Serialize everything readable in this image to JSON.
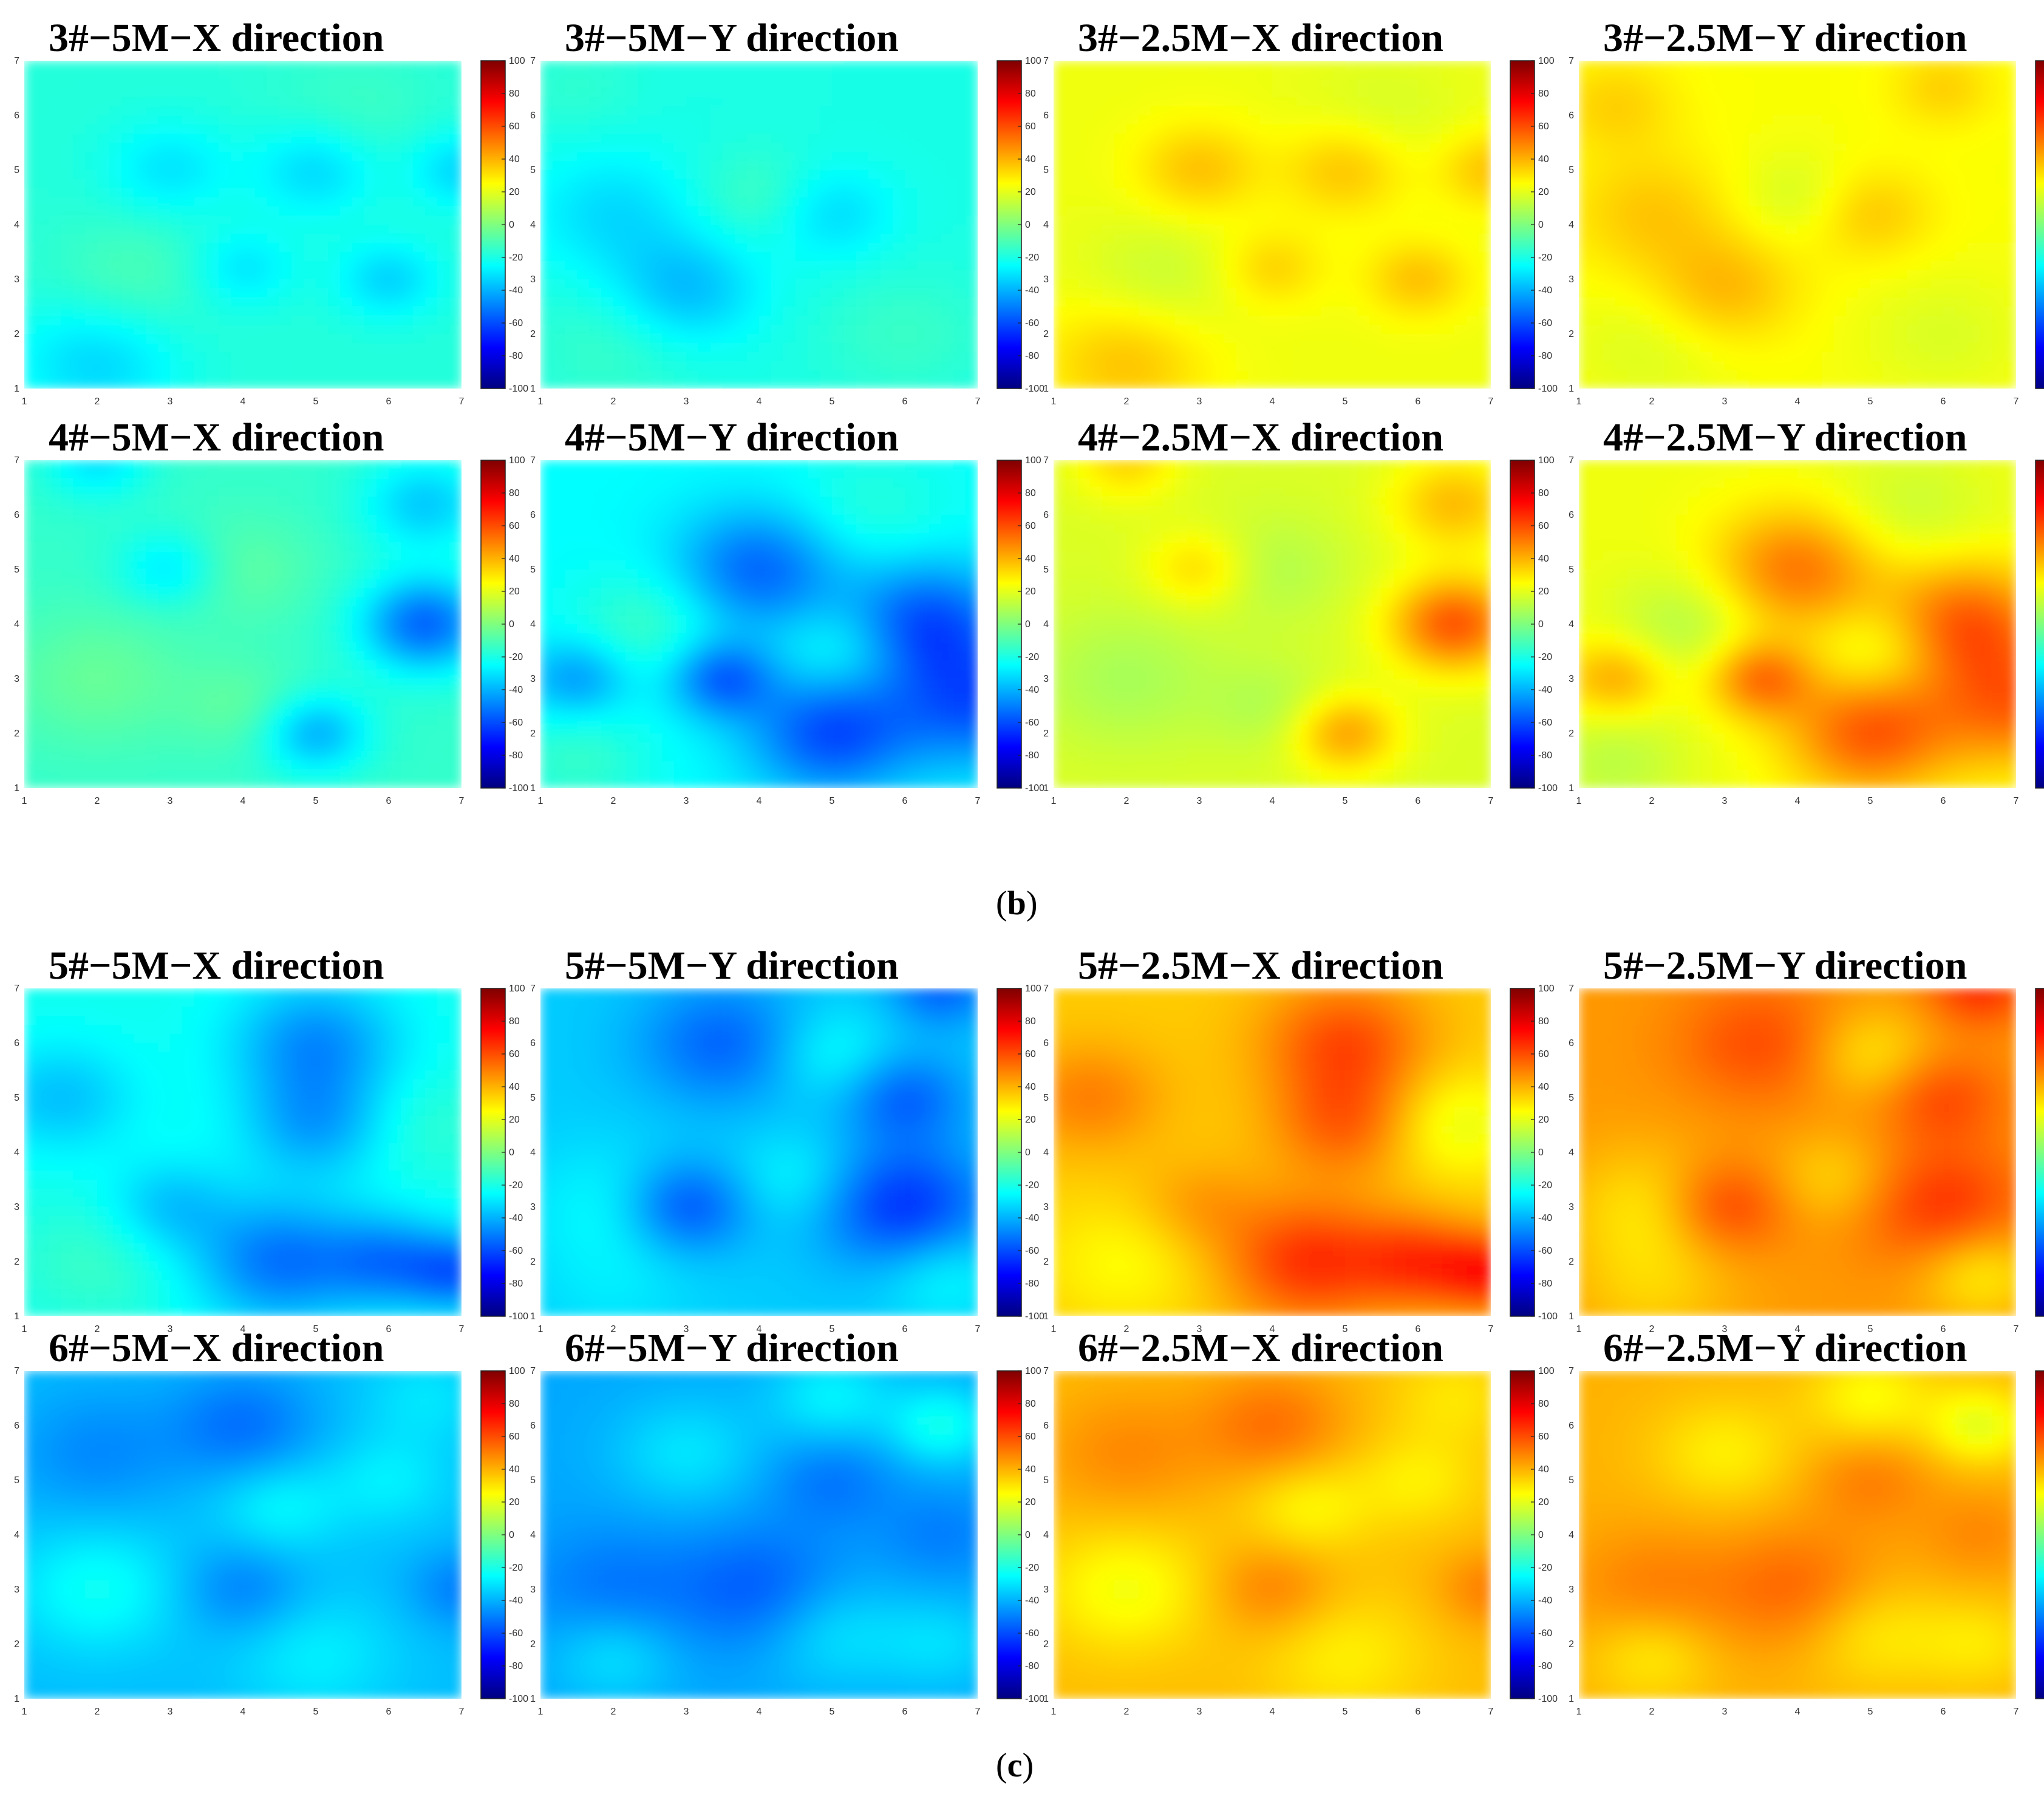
{
  "figure_labels": {
    "b": {
      "open": "(",
      "letter": "b",
      "close": ")"
    },
    "c": {
      "open": "(",
      "letter": "c",
      "close": ")"
    }
  },
  "colorscale": {
    "name": "jet",
    "min": -100,
    "max": 100,
    "ticks": [
      100,
      80,
      60,
      40,
      20,
      0,
      -20,
      -40,
      -60,
      -80,
      -100
    ],
    "stops": [
      "#00007f",
      "#0000ff",
      "#007fff",
      "#00ffff",
      "#7fff7f",
      "#ffff00",
      "#ff7f00",
      "#ff0000",
      "#7f0000"
    ]
  },
  "axes": {
    "x_ticks": [
      1,
      2,
      3,
      4,
      5,
      6,
      7
    ],
    "y_ticks": [
      1,
      2,
      3,
      4,
      5,
      6,
      7
    ],
    "xlim": [
      1,
      7
    ],
    "ylim": [
      1,
      7
    ]
  },
  "chart_data": [
    {
      "type": "heatmap",
      "title": "3#−5M−X direction",
      "base": -18,
      "blobs": [
        [
          2,
          1.5,
          -15,
          0.8
        ],
        [
          3,
          5,
          -12,
          0.6
        ],
        [
          5,
          5,
          -15,
          0.6
        ],
        [
          4,
          3.2,
          -12,
          0.5
        ],
        [
          6,
          3,
          -15,
          0.5
        ],
        [
          7,
          5,
          -15,
          0.5
        ],
        [
          2.5,
          3,
          8,
          0.8
        ],
        [
          5.5,
          6,
          5,
          0.8
        ]
      ]
    },
    {
      "type": "heatmap",
      "title": "3#−5M−Y direction",
      "base": -20,
      "blobs": [
        [
          3,
          2.8,
          -18,
          0.7
        ],
        [
          2,
          4.2,
          -12,
          0.8
        ],
        [
          5,
          4.2,
          -12,
          0.6
        ],
        [
          4,
          4.5,
          8,
          0.6
        ],
        [
          6,
          2,
          6,
          0.8
        ],
        [
          2,
          1.8,
          6,
          0.8
        ],
        [
          1.5,
          6.5,
          4,
          0.6
        ]
      ]
    },
    {
      "type": "heatmap",
      "title": "3#−2.5M−X direction",
      "base": 22,
      "blobs": [
        [
          3,
          5,
          15,
          0.6
        ],
        [
          5,
          5,
          15,
          0.6
        ],
        [
          4,
          3.2,
          12,
          0.5
        ],
        [
          6,
          3,
          15,
          0.5
        ],
        [
          7,
          5,
          15,
          0.5
        ],
        [
          2,
          1.5,
          15,
          0.8
        ],
        [
          2.5,
          3,
          -8,
          0.8
        ],
        [
          5.5,
          6,
          -5,
          0.8
        ]
      ]
    },
    {
      "type": "heatmap",
      "title": "3#−2.5M−Y direction",
      "base": 24,
      "blobs": [
        [
          3,
          2.8,
          15,
          0.7
        ],
        [
          2,
          4.2,
          12,
          0.8
        ],
        [
          5,
          4.2,
          12,
          0.6
        ],
        [
          1.5,
          6.2,
          10,
          0.6
        ],
        [
          6,
          6.5,
          10,
          0.5
        ],
        [
          4,
          4.5,
          -8,
          0.6
        ],
        [
          6,
          2,
          -6,
          0.8
        ],
        [
          2,
          1.8,
          -6,
          0.8
        ]
      ]
    },
    {
      "type": "heatmap",
      "title": "4#−5M−X direction",
      "base": -15,
      "blobs": [
        [
          6.5,
          4,
          -40,
          0.6
        ],
        [
          5,
          2,
          -25,
          0.5
        ],
        [
          3,
          5,
          -15,
          0.5
        ],
        [
          6.5,
          6.2,
          -20,
          0.6
        ],
        [
          2,
          7,
          -15,
          0.5
        ],
        [
          2,
          3,
          10,
          0.9
        ],
        [
          4,
          5,
          8,
          0.7
        ],
        [
          4,
          2.5,
          8,
          0.6
        ]
      ]
    },
    {
      "type": "heatmap",
      "title": "4#−5M−Y direction",
      "base": -25,
      "blobs": [
        [
          4,
          5,
          -30,
          0.8
        ],
        [
          3.5,
          3,
          -30,
          0.5
        ],
        [
          5,
          2,
          -35,
          0.8
        ],
        [
          6.3,
          4,
          -35,
          0.8
        ],
        [
          7,
          2.5,
          -30,
          0.8
        ],
        [
          1.5,
          3,
          -20,
          0.5
        ],
        [
          2.5,
          4,
          12,
          0.7
        ],
        [
          5.2,
          3.5,
          12,
          0.6
        ],
        [
          1.5,
          1.5,
          10,
          0.7
        ],
        [
          5.5,
          6,
          8,
          0.8
        ]
      ]
    },
    {
      "type": "heatmap",
      "title": "4#−2.5M−X direction",
      "base": 18,
      "blobs": [
        [
          6.5,
          4,
          40,
          0.6
        ],
        [
          5,
          2,
          25,
          0.5
        ],
        [
          3,
          5,
          15,
          0.5
        ],
        [
          6.5,
          6.2,
          20,
          0.6
        ],
        [
          2,
          7,
          15,
          0.5
        ],
        [
          2,
          3,
          -10,
          0.9
        ],
        [
          4,
          5,
          -8,
          0.7
        ],
        [
          4,
          2.5,
          -8,
          0.6
        ]
      ]
    },
    {
      "type": "heatmap",
      "title": "4#−2.5M−Y direction",
      "base": 22,
      "blobs": [
        [
          4,
          5,
          30,
          0.8
        ],
        [
          3.5,
          3,
          30,
          0.5
        ],
        [
          5,
          2,
          35,
          0.8
        ],
        [
          6.3,
          4,
          35,
          0.8
        ],
        [
          7,
          2.5,
          30,
          0.8
        ],
        [
          1.5,
          3,
          20,
          0.5
        ],
        [
          2.5,
          4,
          -12,
          0.7
        ],
        [
          5.2,
          3.5,
          -12,
          0.6
        ],
        [
          1.5,
          1.5,
          -10,
          0.7
        ],
        [
          5.5,
          6,
          -8,
          0.8
        ]
      ]
    },
    {
      "type": "heatmap",
      "title": "5#−5M−X direction",
      "base": -22,
      "blobs": [
        [
          5,
          6,
          -25,
          0.8
        ],
        [
          5,
          4.5,
          -20,
          0.7
        ],
        [
          4.5,
          2,
          -30,
          0.8
        ],
        [
          6,
          2,
          -25,
          0.6
        ],
        [
          7,
          1.8,
          -30,
          0.5
        ],
        [
          1.5,
          5,
          -15,
          0.7
        ],
        [
          3,
          3,
          -15,
          0.6
        ],
        [
          2,
          2,
          8,
          0.8
        ],
        [
          6.5,
          4.5,
          6,
          0.7
        ]
      ]
    },
    {
      "type": "heatmap",
      "title": "5#−5M−Y direction",
      "base": -35,
      "blobs": [
        [
          3,
          3,
          -25,
          0.6
        ],
        [
          6,
          3,
          -30,
          0.8
        ],
        [
          3.5,
          6,
          -20,
          0.8
        ],
        [
          6,
          5,
          -20,
          0.6
        ],
        [
          6.5,
          7,
          -20,
          0.5
        ],
        [
          2,
          3,
          10,
          0.8
        ],
        [
          5,
          5.8,
          12,
          0.6
        ],
        [
          4.5,
          3.5,
          10,
          0.6
        ],
        [
          6.5,
          1.8,
          12,
          0.6
        ],
        [
          2,
          1.5,
          5,
          0.8
        ]
      ]
    },
    {
      "type": "heatmap",
      "title": "5#−2.5M−X direction",
      "base": 35,
      "blobs": [
        [
          5,
          6,
          25,
          0.8
        ],
        [
          5,
          4.5,
          20,
          0.7
        ],
        [
          4.5,
          2,
          30,
          0.8
        ],
        [
          6,
          2,
          25,
          0.6
        ],
        [
          7,
          1.8,
          30,
          0.5
        ],
        [
          1.5,
          5,
          15,
          0.7
        ],
        [
          3,
          3,
          10,
          0.6
        ],
        [
          2,
          2,
          -10,
          0.8
        ],
        [
          6.5,
          4.5,
          -15,
          0.7
        ]
      ]
    },
    {
      "type": "heatmap",
      "title": "5#−2.5M−Y direction",
      "base": 45,
      "blobs": [
        [
          3,
          3,
          20,
          0.6
        ],
        [
          6,
          3,
          20,
          0.8
        ],
        [
          3.5,
          6,
          15,
          0.8
        ],
        [
          6,
          5,
          15,
          0.6
        ],
        [
          6.5,
          7,
          20,
          0.5
        ],
        [
          2,
          3,
          -15,
          0.8
        ],
        [
          5,
          5.8,
          -15,
          0.6
        ],
        [
          4.5,
          3.5,
          -12,
          0.6
        ],
        [
          6.5,
          1.8,
          -18,
          0.6
        ],
        [
          2,
          1.5,
          -10,
          0.8
        ]
      ]
    },
    {
      "type": "heatmap",
      "title": "6#−5M−X direction",
      "base": -38,
      "blobs": [
        [
          4,
          6,
          -15,
          0.7
        ],
        [
          2,
          5.5,
          -10,
          0.8
        ],
        [
          4,
          3,
          -12,
          0.6
        ],
        [
          7,
          3,
          -12,
          0.5
        ],
        [
          2,
          3,
          15,
          0.8
        ],
        [
          4.5,
          4.5,
          12,
          0.6
        ],
        [
          6,
          5,
          10,
          0.6
        ],
        [
          5,
          1.8,
          10,
          0.8
        ],
        [
          6.5,
          6.5,
          8,
          0.6
        ]
      ]
    },
    {
      "type": "heatmap",
      "title": "6#−5M−Y direction",
      "base": -42,
      "blobs": [
        [
          2,
          3,
          -10,
          0.8
        ],
        [
          4,
          3,
          -15,
          0.8
        ],
        [
          5,
          5,
          -10,
          0.6
        ],
        [
          6.5,
          4,
          -8,
          0.6
        ],
        [
          5,
          6.5,
          15,
          0.6
        ],
        [
          6.5,
          6,
          20,
          0.5
        ],
        [
          3,
          5.5,
          12,
          0.7
        ],
        [
          2,
          1.8,
          12,
          0.6
        ],
        [
          5,
          2.2,
          12,
          0.7
        ],
        [
          6.5,
          2,
          10,
          0.6
        ]
      ]
    },
    {
      "type": "heatmap",
      "title": "6#−2.5M−X direction",
      "base": 38,
      "blobs": [
        [
          4,
          6,
          15,
          0.7
        ],
        [
          2,
          5.5,
          10,
          0.8
        ],
        [
          4,
          3,
          12,
          0.6
        ],
        [
          7,
          3,
          12,
          0.5
        ],
        [
          2,
          3,
          -15,
          0.8
        ],
        [
          4.5,
          4.5,
          -12,
          0.6
        ],
        [
          6,
          5,
          -10,
          0.6
        ],
        [
          5,
          1.8,
          -10,
          0.8
        ],
        [
          6.5,
          6.5,
          -8,
          0.6
        ]
      ]
    },
    {
      "type": "heatmap",
      "title": "6#−2.5M−Y direction",
      "base": 40,
      "blobs": [
        [
          2,
          3,
          10,
          0.8
        ],
        [
          4,
          3,
          15,
          0.8
        ],
        [
          5,
          5,
          10,
          0.6
        ],
        [
          6.5,
          4,
          8,
          0.6
        ],
        [
          5,
          6.5,
          -15,
          0.6
        ],
        [
          6.5,
          6,
          -20,
          0.5
        ],
        [
          3,
          5.5,
          -12,
          0.7
        ],
        [
          2,
          1.8,
          -12,
          0.6
        ],
        [
          5,
          2.2,
          -12,
          0.7
        ],
        [
          6.5,
          2,
          -10,
          0.6
        ]
      ]
    }
  ]
}
